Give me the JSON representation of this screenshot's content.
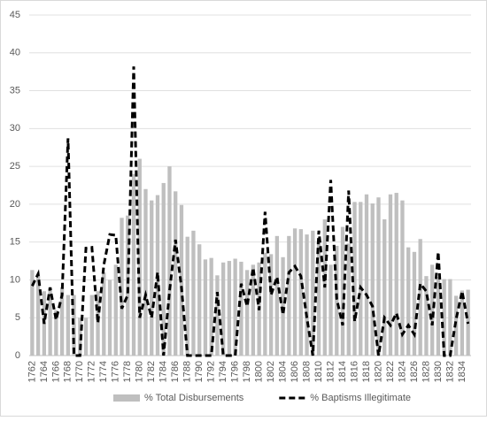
{
  "chart_data": {
    "type": "bar-line",
    "categories": [
      "1762",
      null,
      "1764",
      null,
      "1766",
      null,
      "1768",
      null,
      "1770",
      null,
      "1772",
      null,
      "1774",
      null,
      "1776",
      null,
      "1778",
      null,
      "1780",
      null,
      "1782",
      null,
      "1784",
      null,
      "1786",
      null,
      "1788",
      null,
      "1790",
      null,
      "1792",
      null,
      "1794",
      null,
      "1796",
      null,
      "1798",
      null,
      "1800",
      null,
      "1802",
      null,
      "1804",
      null,
      "1806",
      null,
      "1808",
      null,
      "1810",
      null,
      "1812",
      null,
      "1814",
      null,
      "1816",
      null,
      "1818",
      null,
      "1820",
      null,
      "1822",
      null,
      "1824",
      null,
      "1826",
      null,
      "1828",
      null,
      "1830",
      null,
      "1832",
      null,
      "1834",
      null
    ],
    "series": [
      {
        "name": "% Total Disbursements",
        "type": "bar",
        "color": "#bfbfbf",
        "values": [
          11.3,
          10.5,
          8.5,
          9,
          6,
          9,
          8,
          8,
          5,
          5,
          8,
          8.5,
          11,
          10,
          12,
          18.2,
          18.5,
          24,
          26,
          22,
          20.5,
          21.2,
          22.8,
          25,
          21.7,
          19.9,
          15.7,
          16.5,
          14.7,
          12.7,
          12.9,
          10.6,
          12.3,
          12.5,
          12.8,
          12.4,
          11.3,
          12,
          12.3,
          13.6,
          13.4,
          15.8,
          13,
          15.8,
          16.8,
          16.7,
          16,
          16.5,
          15,
          18,
          12,
          14.5,
          17,
          14.8,
          20.3,
          20.3,
          21.3,
          20.1,
          20.9,
          18,
          21.3,
          21.5,
          20.5,
          14.3,
          13.7,
          15.4,
          10.5,
          12,
          10.4,
          10.1,
          10.1,
          7.9,
          8.6,
          8.7
        ]
      },
      {
        "name": "% Baptisms Illegitimate",
        "type": "line",
        "color": "#000000",
        "values": [
          9.2,
          10.8,
          4.2,
          9,
          4.7,
          8,
          28.7,
          0,
          0,
          14.2,
          14.3,
          4.3,
          12,
          16,
          15.9,
          6.2,
          8,
          38.2,
          5,
          8,
          5,
          11,
          0,
          8.5,
          15.3,
          9,
          0,
          0,
          0,
          0,
          0,
          8.4,
          0,
          0,
          0,
          9.5,
          6.5,
          11.6,
          6,
          19,
          8,
          10.4,
          5.4,
          11,
          11.8,
          10.5,
          5,
          0,
          16.5,
          9,
          23.2,
          7.5,
          4,
          21.8,
          4.5,
          9,
          8,
          6.5,
          0,
          5,
          4,
          5.6,
          2.8,
          4,
          2.8,
          9.5,
          8.5,
          4,
          13.7,
          0,
          0,
          4.8,
          8.5,
          4.2
        ]
      }
    ],
    "ylim": [
      0,
      45
    ],
    "yticks": [
      0,
      5,
      10,
      15,
      20,
      25,
      30,
      35,
      40,
      45
    ],
    "grid": true,
    "legend": "bottom"
  }
}
